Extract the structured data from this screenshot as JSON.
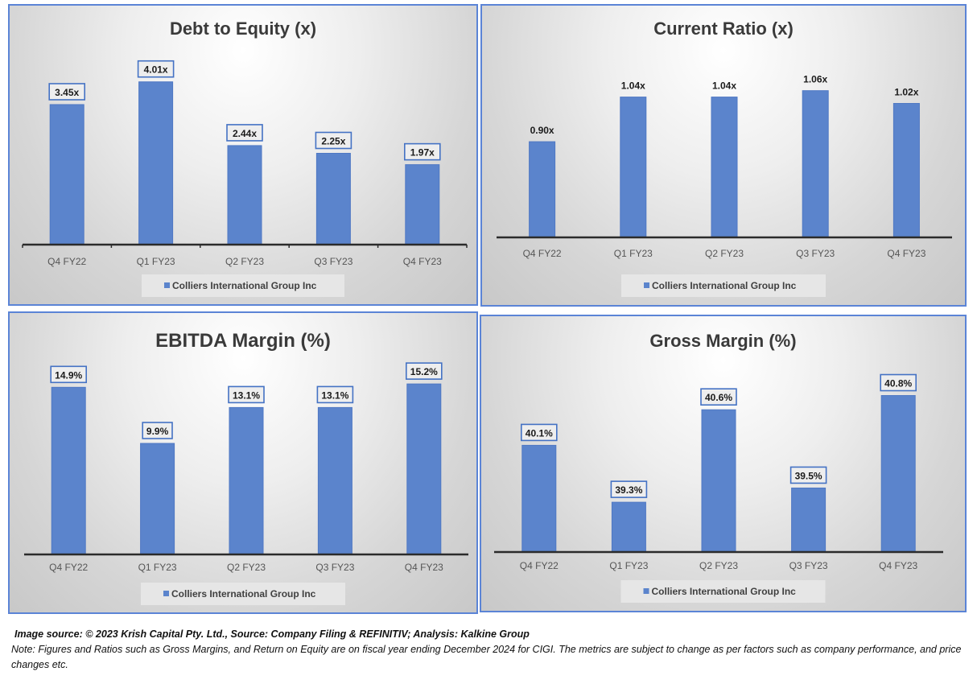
{
  "colors": {
    "bar": "#5b84cc",
    "bar_edge": "#4f78c4",
    "label_border": "#4472c4",
    "axis": "#2b2b2b",
    "panel_border": "#5b84d6",
    "legend_bg": "#e6e6e6"
  },
  "chart_data": [
    {
      "type": "bar",
      "title": "Debt to Equity (x)",
      "categories": [
        "Q4 FY22",
        "Q1 FY23",
        "Q2 FY23",
        "Q3 FY23",
        "Q4 FY23"
      ],
      "series": [
        {
          "name": "Colliers International Group Inc",
          "values": [
            3.45,
            4.01,
            2.44,
            2.25,
            1.97
          ]
        }
      ],
      "data_labels": [
        "3.45x",
        "4.01x",
        "2.44x",
        "2.25x",
        "1.97x"
      ],
      "data_label_style": "boxed",
      "axis_ticks": true,
      "ylim": [
        0,
        4.5
      ],
      "xlabel": "",
      "ylabel": "",
      "grid": false,
      "legend": "bottom"
    },
    {
      "type": "bar",
      "title": "Current Ratio (x)",
      "categories": [
        "Q4 FY22",
        "Q1 FY23",
        "Q2 FY23",
        "Q3 FY23",
        "Q4 FY23"
      ],
      "series": [
        {
          "name": "Colliers International Group Inc",
          "values": [
            0.9,
            1.04,
            1.04,
            1.06,
            1.02
          ]
        }
      ],
      "data_labels": [
        "0.90x",
        "1.04x",
        "1.04x",
        "1.06x",
        "1.02x"
      ],
      "data_label_style": "plain",
      "axis_ticks": false,
      "ylim": [
        0.6,
        1.15
      ],
      "xlabel": "",
      "ylabel": "",
      "grid": false,
      "legend": "bottom"
    },
    {
      "type": "bar",
      "title": "EBITDA Margin (%)",
      "categories": [
        "Q4 FY22",
        "Q1 FY23",
        "Q2 FY23",
        "Q3 FY23",
        "Q4 FY23"
      ],
      "series": [
        {
          "name": "Colliers International Group Inc",
          "values": [
            14.9,
            9.9,
            13.1,
            13.1,
            15.2
          ]
        }
      ],
      "data_labels": [
        "14.9%",
        "9.9%",
        "13.1%",
        "13.1%",
        "15.2%"
      ],
      "data_label_style": "boxed",
      "axis_ticks": false,
      "ylim": [
        0,
        16.5
      ],
      "xlabel": "",
      "ylabel": "",
      "grid": false,
      "legend": "bottom"
    },
    {
      "type": "bar",
      "title": "Gross Margin (%)",
      "categories": [
        "Q4 FY22",
        "Q1 FY23",
        "Q2 FY23",
        "Q3 FY23",
        "Q4 FY23"
      ],
      "series": [
        {
          "name": "Colliers International Group Inc",
          "values": [
            40.1,
            39.3,
            40.6,
            39.5,
            40.8
          ]
        }
      ],
      "data_labels": [
        "40.1%",
        "39.3%",
        "40.6%",
        "39.5%",
        "40.8%"
      ],
      "data_label_style": "boxed",
      "axis_ticks": false,
      "ylim": [
        38.6,
        41.1
      ],
      "xlabel": "",
      "ylabel": "",
      "grid": false,
      "legend": "bottom"
    }
  ],
  "footer": {
    "source": "Image source: © 2023 Krish Capital Pty. Ltd., Source: Company Filing & REFINITIV; Analysis: Kalkine Group",
    "note": "Note: Figures and Ratios such as  Gross Margins, and Return on Equity are on fiscal year ending  December  2024  for CIGI. The metrics are subject to change as per factors such as company performance, and price changes etc."
  }
}
